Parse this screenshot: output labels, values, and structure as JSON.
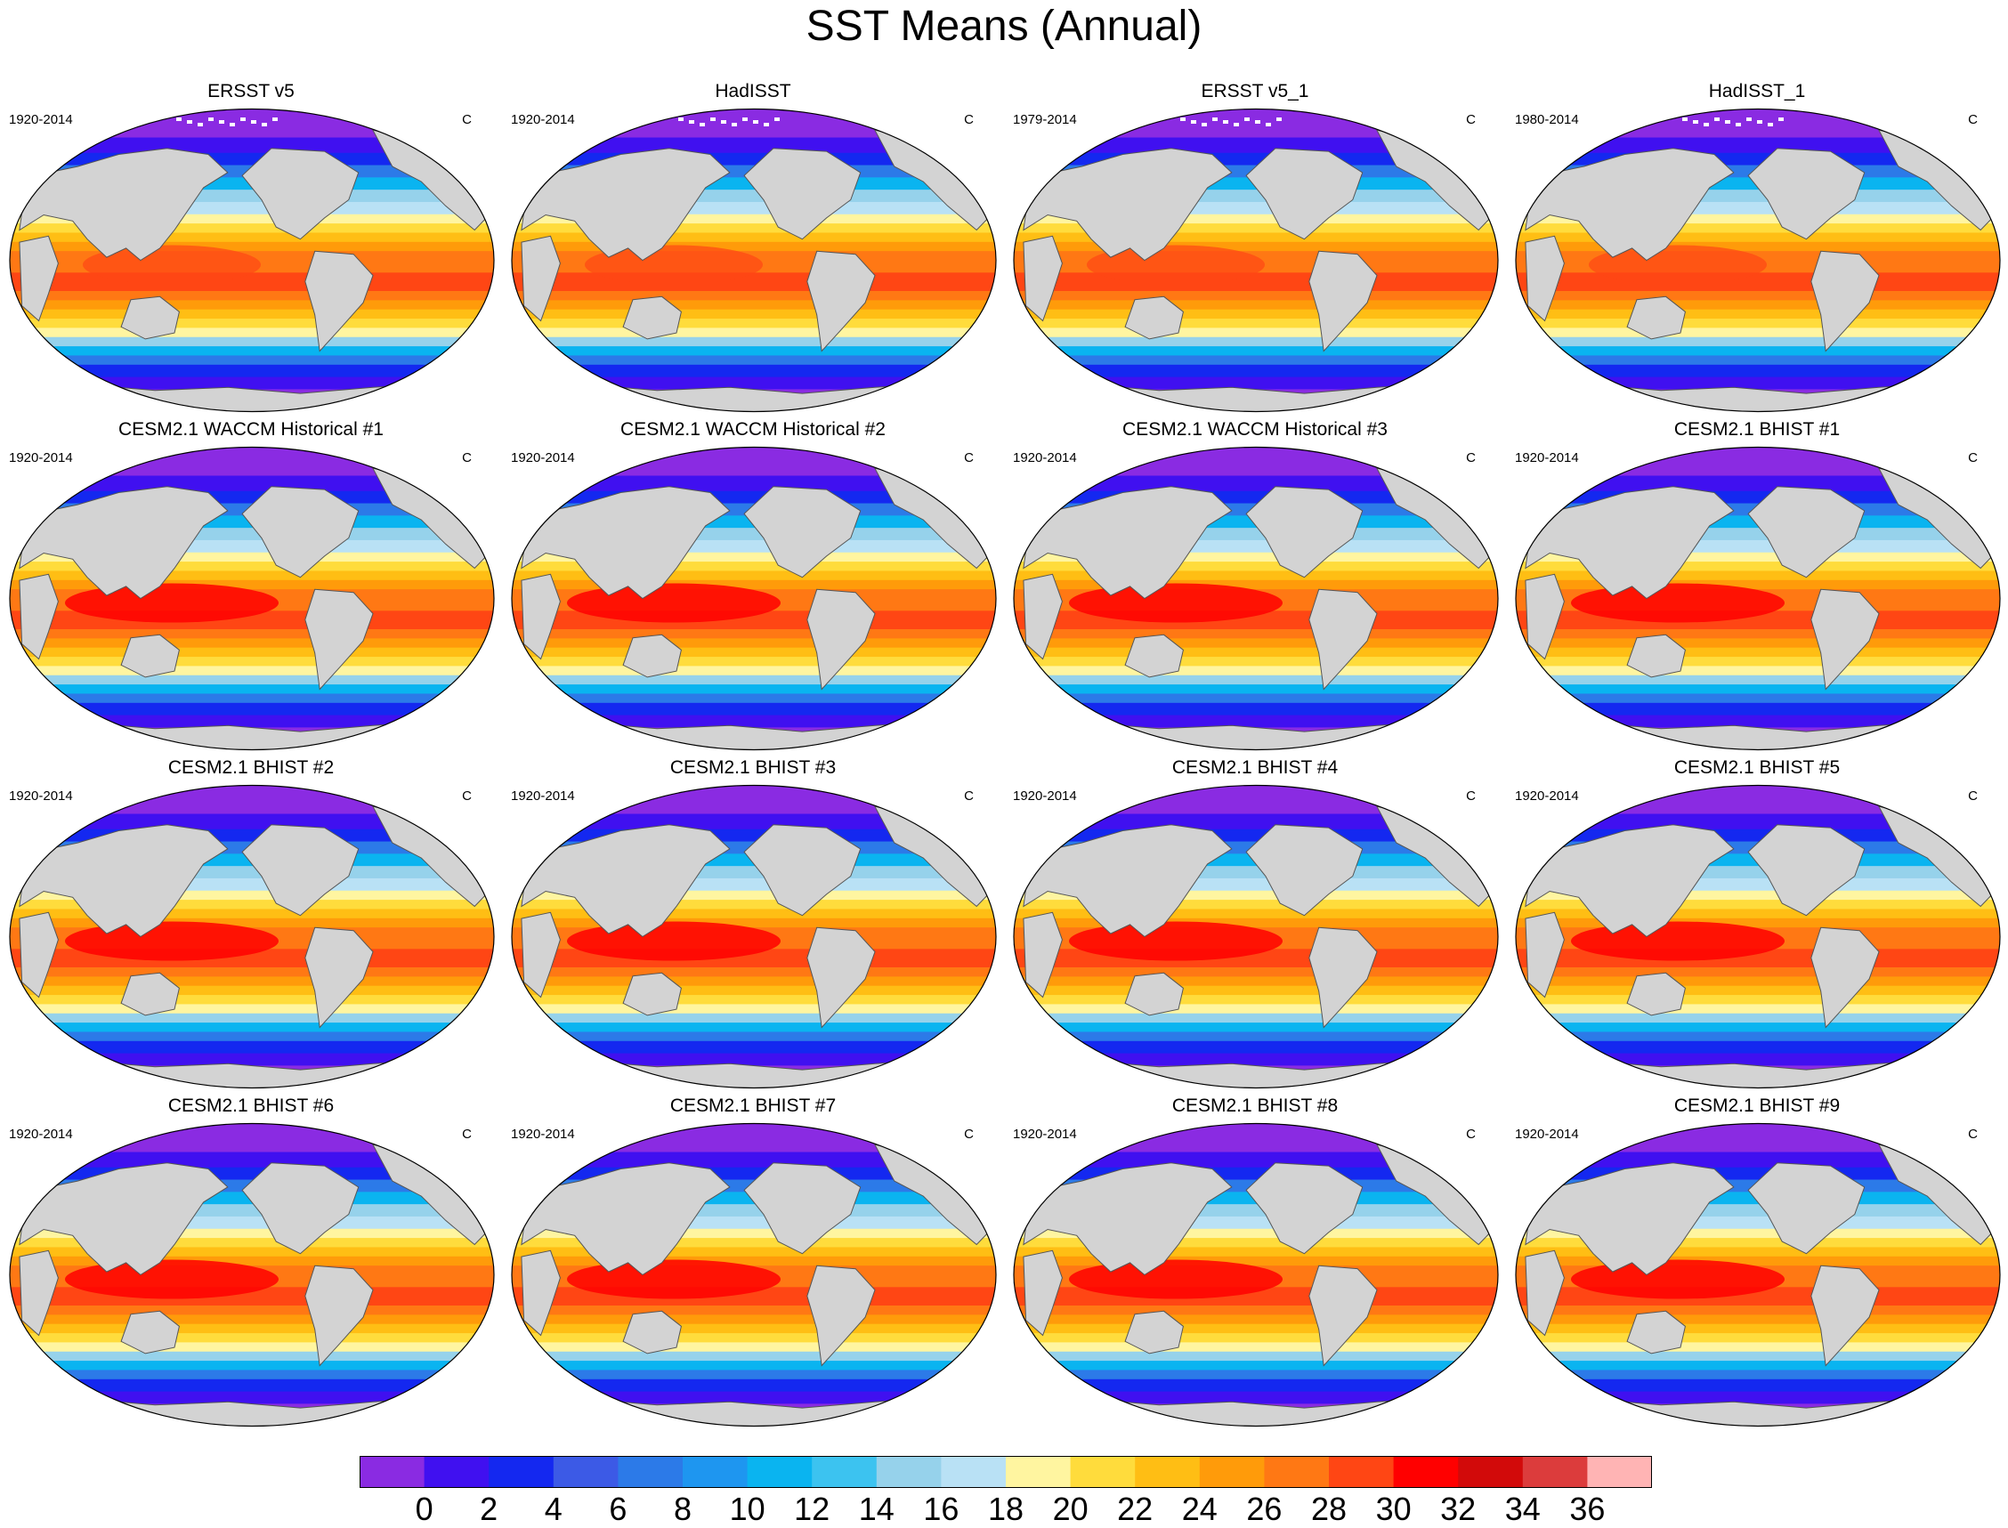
{
  "title": "SST Means (Annual)",
  "units": "C",
  "panels": [
    {
      "name": "ERSST v5",
      "period": "1920-2014",
      "units": "C",
      "source": "obs"
    },
    {
      "name": "HadISST",
      "period": "1920-2014",
      "units": "C",
      "source": "obs"
    },
    {
      "name": "ERSST v5_1",
      "period": "1979-2014",
      "units": "C",
      "source": "obs"
    },
    {
      "name": "HadISST_1",
      "period": "1980-2014",
      "units": "C",
      "source": "obs"
    },
    {
      "name": "CESM2.1 WACCM Historical #1",
      "period": "1920-2014",
      "units": "C",
      "source": "model"
    },
    {
      "name": "CESM2.1 WACCM Historical #2",
      "period": "1920-2014",
      "units": "C",
      "source": "model"
    },
    {
      "name": "CESM2.1 WACCM Historical #3",
      "period": "1920-2014",
      "units": "C",
      "source": "model"
    },
    {
      "name": "CESM2.1 BHIST #1",
      "period": "1920-2014",
      "units": "C",
      "source": "model"
    },
    {
      "name": "CESM2.1 BHIST #2",
      "period": "1920-2014",
      "units": "C",
      "source": "model"
    },
    {
      "name": "CESM2.1 BHIST #3",
      "period": "1920-2014",
      "units": "C",
      "source": "model"
    },
    {
      "name": "CESM2.1 BHIST #4",
      "period": "1920-2014",
      "units": "C",
      "source": "model"
    },
    {
      "name": "CESM2.1 BHIST #5",
      "period": "1920-2014",
      "units": "C",
      "source": "model"
    },
    {
      "name": "CESM2.1 BHIST #6",
      "period": "1920-2014",
      "units": "C",
      "source": "model"
    },
    {
      "name": "CESM2.1 BHIST #7",
      "period": "1920-2014",
      "units": "C",
      "source": "model"
    },
    {
      "name": "CESM2.1 BHIST #8",
      "period": "1920-2014",
      "units": "C",
      "source": "model"
    },
    {
      "name": "CESM2.1 BHIST #9",
      "period": "1920-2014",
      "units": "C",
      "source": "model"
    }
  ],
  "colorbar": {
    "labels": [
      "0",
      "2",
      "4",
      "6",
      "8",
      "10",
      "12",
      "14",
      "16",
      "18",
      "20",
      "22",
      "24",
      "26",
      "28",
      "30",
      "32",
      "34",
      "36"
    ],
    "colors": [
      "#8a2be2",
      "#4010f0",
      "#1428f0",
      "#3c5ae6",
      "#2c7ae8",
      "#1e96f0",
      "#0ab4f0",
      "#3cc3f0",
      "#96d2eb",
      "#b9e1f5",
      "#fff5a0",
      "#ffdc3c",
      "#ffbe14",
      "#ff9b0a",
      "#ff7814",
      "#ff4614",
      "#ff0000",
      "#d20a0a",
      "#dc3c3c",
      "#ffb4b4"
    ]
  },
  "land_color": "#d3d3d3",
  "sea_ice_color": "#ffffff"
}
